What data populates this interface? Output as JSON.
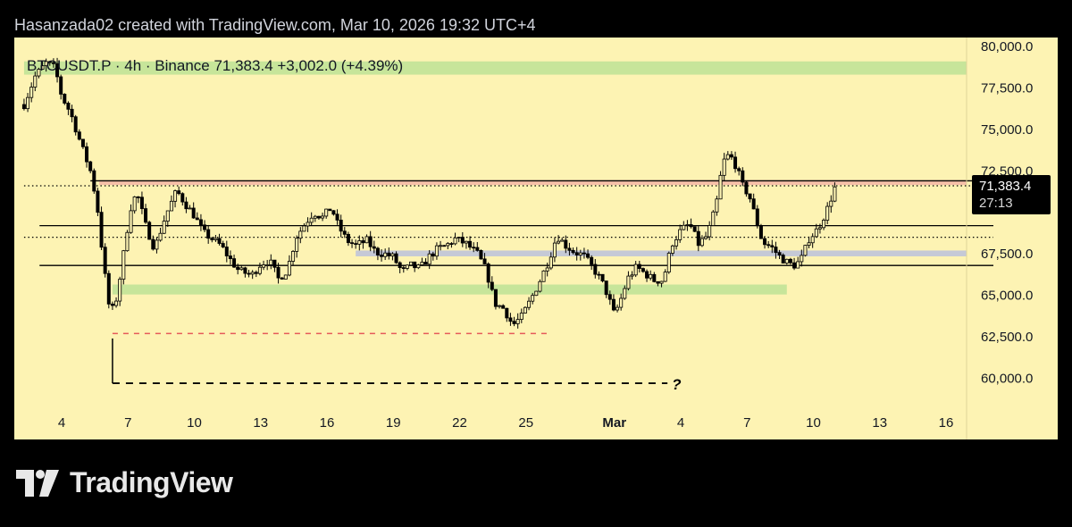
{
  "header": {
    "caption": "Hasanzada02 created with TradingView.com, Mar 10, 2026 19:32 UTC+4"
  },
  "legend": {
    "symbol": "BTCUSDT.P",
    "separator": "·",
    "interval": "4h",
    "exchange": "Binance",
    "last": "71,383.4",
    "change": "+3,002.0",
    "change_pct": "(+4.39%)"
  },
  "price_label": {
    "value": "71,383.4",
    "countdown": "27:13"
  },
  "annotation": {
    "question": "?"
  },
  "brand": {
    "name": "TradingView",
    "icon": "tradingview-logo-icon"
  },
  "colors": {
    "background": "#000000",
    "plot_bg": "#fdf3b3",
    "zone_green": "#c7e59a",
    "zone_blue": "#c5c9d6",
    "zone_red": "#f6c0a8",
    "candle": "#000000",
    "red_dashed": "#e55a5a",
    "price_label_bg": "#000000",
    "price_label_text": "#ffffff"
  },
  "chart_data": {
    "type": "candlestick",
    "title": "BTCUSDT.P · 4h · Binance",
    "ylim": [
      58500,
      81000
    ],
    "y_ticks": [
      {
        "value": 80000,
        "label": "80,000.0"
      },
      {
        "value": 77500,
        "label": "77,500.0"
      },
      {
        "value": 75000,
        "label": "75,000.0"
      },
      {
        "value": 72500,
        "label": "72,500.0"
      },
      {
        "value": 67500,
        "label": "67,500.0"
      },
      {
        "value": 65000,
        "label": "65,000.0"
      },
      {
        "value": 62500,
        "label": "62,500.0"
      },
      {
        "value": 60000,
        "label": "60,000.0"
      }
    ],
    "x_range_days": [
      2.3,
      17.3
    ],
    "x_ticks": [
      {
        "day": 4,
        "label": "4"
      },
      {
        "day": 7,
        "label": "7"
      },
      {
        "day": 10,
        "label": "10"
      },
      {
        "day": 13,
        "label": "13"
      },
      {
        "day": 16,
        "label": "16"
      },
      {
        "day": 19,
        "label": "19"
      },
      {
        "day": 22,
        "label": "22"
      },
      {
        "day": 25,
        "label": "25"
      },
      {
        "day": 29,
        "label": "Mar"
      },
      {
        "day": 32,
        "label": "4"
      },
      {
        "day": 35,
        "label": "7"
      },
      {
        "day": 38,
        "label": "10"
      },
      {
        "day": 41,
        "label": "13"
      },
      {
        "day": 44,
        "label": "16"
      }
    ],
    "zones": [
      {
        "name": "green-zone-top",
        "y1": 78300,
        "y2": 79100,
        "x1": 2.3,
        "x2": 47.3,
        "color": "#c7e59a"
      },
      {
        "name": "red-zone-resistance",
        "y1": 71650,
        "y2": 71950,
        "x1": 5.7,
        "x2": 45.2,
        "color": "#f6c0a8"
      },
      {
        "name": "blue-zone-mid",
        "y1": 67350,
        "y2": 67700,
        "x1": 17.3,
        "x2": 47.3,
        "color": "#c5c9d6"
      },
      {
        "name": "green-zone-support",
        "y1": 65050,
        "y2": 65650,
        "x1": 6.3,
        "x2": 36.8,
        "color": "#c7e59a"
      }
    ],
    "horizontal_lines": [
      {
        "name": "resistance-line",
        "price": 71900,
        "x1": 5.3,
        "x2": 47.3,
        "style": "solid"
      },
      {
        "name": "mid-line",
        "price": 69200,
        "x1": 3.0,
        "x2": 47.3,
        "style": "solid"
      },
      {
        "name": "support-line",
        "price": 66800,
        "x1": 3.0,
        "x2": 47.3,
        "style": "solid"
      },
      {
        "name": "dotted-line-upper",
        "price": 71600,
        "x1": 2.3,
        "x2": 47.3,
        "style": "dotted"
      },
      {
        "name": "dotted-line-lower",
        "price": 68500,
        "x1": 2.3,
        "x2": 47.3,
        "style": "dotted"
      },
      {
        "name": "red-dashed-low",
        "price": 62700,
        "x1": 6.3,
        "x2": 26.0,
        "style": "dashed-red"
      },
      {
        "name": "target-dashed",
        "price": 59700,
        "x1": 6.3,
        "x2": 31.4,
        "style": "dashed-black"
      }
    ],
    "target_vertical": {
      "day": 6.3,
      "from": 62400,
      "to": 59700
    },
    "price_path": [
      [
        2.3,
        76500
      ],
      [
        2.8,
        78200
      ],
      [
        3.3,
        79000
      ],
      [
        3.7,
        78700
      ],
      [
        4.0,
        77000
      ],
      [
        4.4,
        76000
      ],
      [
        4.9,
        74000
      ],
      [
        5.3,
        72500
      ],
      [
        5.6,
        70500
      ],
      [
        5.9,
        66800
      ],
      [
        6.2,
        63800
      ],
      [
        6.5,
        64900
      ],
      [
        6.8,
        67500
      ],
      [
        7.1,
        70200
      ],
      [
        7.4,
        71200
      ],
      [
        7.8,
        69200
      ],
      [
        8.2,
        67800
      ],
      [
        8.7,
        69800
      ],
      [
        9.2,
        71300
      ],
      [
        9.6,
        70500
      ],
      [
        10.0,
        69800
      ],
      [
        10.4,
        68800
      ],
      [
        10.8,
        68400
      ],
      [
        11.2,
        68000
      ],
      [
        11.6,
        67200
      ],
      [
        12.0,
        66500
      ],
      [
        12.6,
        66200
      ],
      [
        13.0,
        66900
      ],
      [
        13.4,
        67100
      ],
      [
        13.8,
        66000
      ],
      [
        14.2,
        66500
      ],
      [
        14.6,
        68500
      ],
      [
        15.0,
        69300
      ],
      [
        15.4,
        70000
      ],
      [
        15.8,
        69700
      ],
      [
        16.2,
        70300
      ],
      [
        16.5,
        69200
      ],
      [
        16.9,
        68300
      ],
      [
        17.3,
        68000
      ],
      [
        17.8,
        68300
      ],
      [
        18.2,
        67600
      ],
      [
        18.6,
        67500
      ],
      [
        19.0,
        67300
      ],
      [
        19.4,
        66400
      ],
      [
        19.8,
        66800
      ],
      [
        20.2,
        66600
      ],
      [
        20.6,
        67300
      ],
      [
        21.0,
        67800
      ],
      [
        21.4,
        68000
      ],
      [
        21.8,
        68400
      ],
      [
        22.3,
        68100
      ],
      [
        22.8,
        67500
      ],
      [
        23.2,
        66500
      ],
      [
        23.6,
        64500
      ],
      [
        24.0,
        64200
      ],
      [
        24.4,
        63200
      ],
      [
        24.8,
        63700
      ],
      [
        25.2,
        64700
      ],
      [
        25.6,
        65800
      ],
      [
        26.0,
        67000
      ],
      [
        26.4,
        68600
      ],
      [
        26.8,
        68000
      ],
      [
        27.2,
        67600
      ],
      [
        27.6,
        67400
      ],
      [
        28.0,
        66700
      ],
      [
        28.4,
        65900
      ],
      [
        28.7,
        65000
      ],
      [
        29.0,
        63800
      ],
      [
        29.3,
        64800
      ],
      [
        29.6,
        66000
      ],
      [
        30.0,
        66700
      ],
      [
        30.4,
        66300
      ],
      [
        30.8,
        65900
      ],
      [
        31.2,
        65900
      ],
      [
        31.6,
        68100
      ],
      [
        32.0,
        68900
      ],
      [
        32.4,
        69300
      ],
      [
        32.8,
        68100
      ],
      [
        33.2,
        68600
      ],
      [
        33.6,
        70400
      ],
      [
        33.9,
        73000
      ],
      [
        34.2,
        73500
      ],
      [
        34.5,
        72800
      ],
      [
        34.8,
        71600
      ],
      [
        35.1,
        71000
      ],
      [
        35.4,
        69600
      ],
      [
        35.7,
        68200
      ],
      [
        36.1,
        67900
      ],
      [
        36.5,
        67300
      ],
      [
        36.9,
        66900
      ],
      [
        37.2,
        66800
      ],
      [
        37.5,
        67300
      ],
      [
        37.8,
        68400
      ],
      [
        38.2,
        69000
      ],
      [
        38.6,
        70100
      ],
      [
        39.0,
        71600
      ]
    ]
  }
}
